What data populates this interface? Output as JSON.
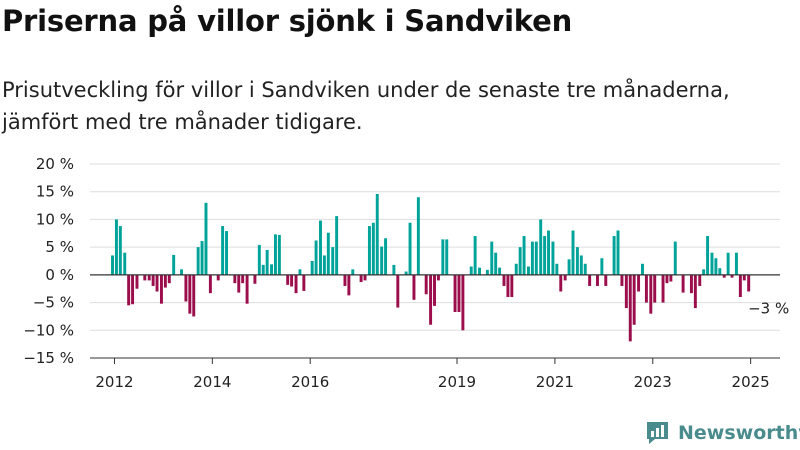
{
  "header": {
    "title": "Priserna på villor sjönk i Sandviken",
    "subtitle": "Prisutveckling för villor i Sandviken under de senaste tre månaderna, jämfört med tre månader tidigare."
  },
  "brand": {
    "name": "Newsworthy",
    "icon": "newsworthy-logo-icon"
  },
  "colors": {
    "positive": "#00a399",
    "negative": "#9b0d4b",
    "grid": "#dddddd",
    "text": "#222222"
  },
  "chart_data": {
    "type": "bar",
    "title": "Priserna på villor sjönk i Sandviken",
    "subtitle": "Prisutveckling för villor i Sandviken under de senaste tre månaderna, jämfört med tre månader tidigare.",
    "xlabel": "",
    "ylabel": "",
    "ylim": [
      -15,
      20
    ],
    "xlim": [
      2011.5,
      2025.6
    ],
    "y_ticks": [
      -15,
      -10,
      -5,
      0,
      5,
      10,
      15,
      20
    ],
    "y_tick_labels": [
      "−15 %",
      "−10 %",
      "−5 %",
      "0 %",
      "5 %",
      "10 %",
      "15 %",
      "20 %"
    ],
    "x_ticks": [
      2012,
      2014,
      2016,
      2019,
      2021,
      2023,
      2025
    ],
    "x_tick_labels": [
      "2012",
      "2014",
      "2016",
      "2019",
      "2021",
      "2023",
      "2025"
    ],
    "grid": true,
    "annotation": {
      "text": "−3 %",
      "x": 2024.96,
      "y": -3
    },
    "series": [
      {
        "x": [
          2011.96,
          2012.04,
          2012.12,
          2012.21,
          2012.29,
          2012.37,
          2012.46,
          2012.54,
          2012.62,
          2012.71,
          2012.79,
          2012.87,
          2012.96,
          2013.04,
          2013.12,
          2013.21,
          2013.29,
          2013.37,
          2013.46,
          2013.54,
          2013.62,
          2013.71,
          2013.79,
          2013.87,
          2013.96,
          2014.04,
          2014.12,
          2014.21,
          2014.29,
          2014.37,
          2014.46,
          2014.54,
          2014.62,
          2014.71,
          2014.79,
          2014.87,
          2014.96,
          2015.04,
          2015.12,
          2015.21,
          2015.29,
          2015.37,
          2015.46,
          2015.54,
          2015.62,
          2015.71,
          2015.79,
          2015.87,
          2015.96,
          2016.04,
          2016.12,
          2016.21,
          2016.29,
          2016.37,
          2016.46,
          2016.54,
          2016.62,
          2016.71,
          2016.79,
          2016.87,
          2016.96,
          2017.04,
          2017.12,
          2017.21,
          2017.29,
          2017.37,
          2017.46,
          2017.54,
          2017.62,
          2017.71,
          2017.79,
          2017.87,
          2017.96,
          2018.04,
          2018.12,
          2018.21,
          2018.29,
          2018.37,
          2018.46,
          2018.54,
          2018.62,
          2018.71,
          2018.79,
          2018.87,
          2018.96,
          2019.04,
          2019.12,
          2019.21,
          2019.29,
          2019.37,
          2019.46,
          2019.54,
          2019.62,
          2019.71,
          2019.79,
          2019.87,
          2019.96,
          2020.04,
          2020.12,
          2020.21,
          2020.29,
          2020.37,
          2020.46,
          2020.54,
          2020.62,
          2020.71,
          2020.79,
          2020.87,
          2020.96,
          2021.04,
          2021.12,
          2021.21,
          2021.29,
          2021.37,
          2021.46,
          2021.54,
          2021.62,
          2021.71,
          2021.79,
          2021.87,
          2021.96,
          2022.04,
          2022.12,
          2022.21,
          2022.29,
          2022.37,
          2022.46,
          2022.54,
          2022.62,
          2022.71,
          2022.79,
          2022.87,
          2022.96,
          2023.04,
          2023.12,
          2023.21,
          2023.29,
          2023.37,
          2023.46,
          2023.54,
          2023.62,
          2023.71,
          2023.79,
          2023.87,
          2023.96,
          2024.04,
          2024.12,
          2024.21,
          2024.29,
          2024.37,
          2024.46,
          2024.54,
          2024.62,
          2024.71,
          2024.79,
          2024.87,
          2024.96
        ],
        "values": [
          3.5,
          10,
          8.8,
          4,
          -5.5,
          -5.3,
          -2.5,
          0,
          -1,
          -1,
          -2,
          -3,
          -5.2,
          -2.3,
          -1.5,
          3.6,
          0,
          1,
          -4.8,
          -7,
          -7.5,
          5,
          6.1,
          13,
          -3.3,
          0,
          -1,
          8.8,
          7.9,
          0,
          -1.5,
          -3.2,
          -1.5,
          -5.2,
          0,
          -1.6,
          5.4,
          1.8,
          4.5,
          1.9,
          7.3,
          7.2,
          0,
          -1.8,
          -2.1,
          -3.3,
          1,
          -2.9,
          0,
          2.5,
          6.2,
          9.8,
          3.5,
          7.6,
          5,
          10.6,
          0,
          -2,
          -3.7,
          1,
          0,
          -1.3,
          -1,
          8.8,
          9.4,
          14.6,
          5.1,
          6.6,
          0,
          1.8,
          -5.9,
          0,
          0.6,
          9.4,
          -4.5,
          14,
          0,
          -3.5,
          -9,
          -5.6,
          -1,
          6.4,
          6.4,
          0,
          -6.7,
          -6.7,
          -10,
          0,
          1.5,
          7,
          1.3,
          0,
          0.9,
          6,
          4,
          1.3,
          -2,
          -4,
          -4,
          2,
          5,
          7,
          1.5,
          6,
          6,
          10,
          7,
          8,
          6,
          2,
          -3,
          -1,
          2.8,
          8,
          5,
          3.5,
          2,
          -2,
          0,
          -2,
          3,
          -2,
          0,
          7,
          8,
          -2,
          -6,
          -12,
          -9,
          -3,
          2,
          -5,
          -7,
          -5,
          0,
          -5,
          -1.5,
          -1.2,
          6,
          0,
          -3.2,
          0,
          -3.3,
          -6,
          -2,
          1,
          7,
          4,
          3,
          1.2,
          -0.5,
          4,
          -0.5,
          4,
          -4,
          -1,
          -3
        ]
      }
    ]
  }
}
